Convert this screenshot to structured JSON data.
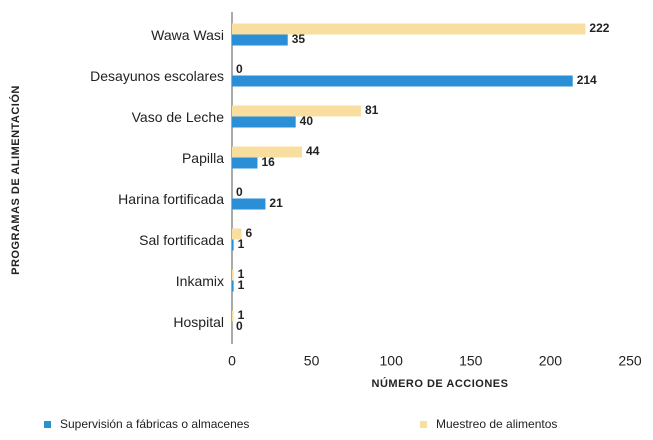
{
  "chart_data": {
    "type": "barh",
    "categories": [
      "Wawa Wasi",
      "Desayunos escolares",
      "Vaso de Leche",
      "Papilla",
      "Harina fortificada",
      "Sal fortificada",
      "Inkamix",
      "Hospital"
    ],
    "series": [
      {
        "name": "Supervisión a fábricas o almacenes",
        "color": "#2a8fd6",
        "values": [
          35,
          214,
          40,
          16,
          21,
          1,
          1,
          0
        ]
      },
      {
        "name": "Muestreo de alimentos",
        "color": "#f8dfa0",
        "values": [
          222,
          0,
          81,
          44,
          0,
          6,
          1,
          1
        ]
      }
    ],
    "xlabel": "NÚMERO DE ACCIONES",
    "ylabel": "PROGRAMAS DE ALIMENTACIÓN",
    "xlim": [
      0,
      250
    ],
    "xticks": [
      0,
      50,
      100,
      150,
      200,
      250
    ],
    "grid": false,
    "legend": "bottom"
  }
}
